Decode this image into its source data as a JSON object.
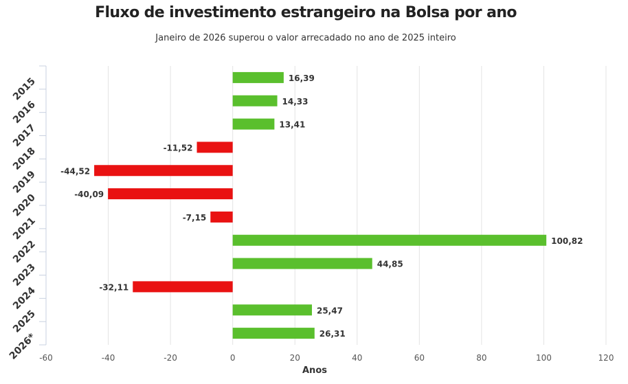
{
  "header": {
    "title": "Fluxo de investimento estrangeiro na Bolsa por ano",
    "subtitle": "Janeiro de 2026 superou o valor arrecadado no ano de 2025 inteiro"
  },
  "colors": {
    "positive": "#5abf2d",
    "negative": "#e91212",
    "grid": "#e3e3e3",
    "axis": "#c8d0e0"
  },
  "chart_data": {
    "type": "bar",
    "orientation": "horizontal",
    "title": "Fluxo de investimento estrangeiro na Bolsa por ano",
    "subtitle": "Janeiro de 2026 superou o valor arrecadado no ano de 2025 inteiro",
    "categories": [
      "2015",
      "2016",
      "2017",
      "2018",
      "2019",
      "2020",
      "2021",
      "2022",
      "2023",
      "2024",
      "2025",
      "2026*"
    ],
    "values": [
      16.39,
      14.33,
      13.41,
      -11.52,
      -44.52,
      -40.09,
      -7.15,
      100.82,
      44.85,
      -32.11,
      25.47,
      26.31
    ],
    "data_labels": [
      "16,39",
      "14,33",
      "13,41",
      "-11,52",
      "-44,52",
      "-40,09",
      "-7,15",
      "100,82",
      "44,85",
      "-32,11",
      "25,47",
      "26,31"
    ],
    "xlabel": "Anos",
    "ylabel": "",
    "xlim": [
      -60,
      120
    ],
    "xticks": [
      -60,
      -40,
      -20,
      0,
      20,
      40,
      60,
      80,
      100,
      120
    ],
    "xtick_labels": [
      "-60",
      "-40",
      "-20",
      "0",
      "20",
      "40",
      "60",
      "80",
      "100",
      "120"
    ],
    "grid": true,
    "legend": "none"
  }
}
